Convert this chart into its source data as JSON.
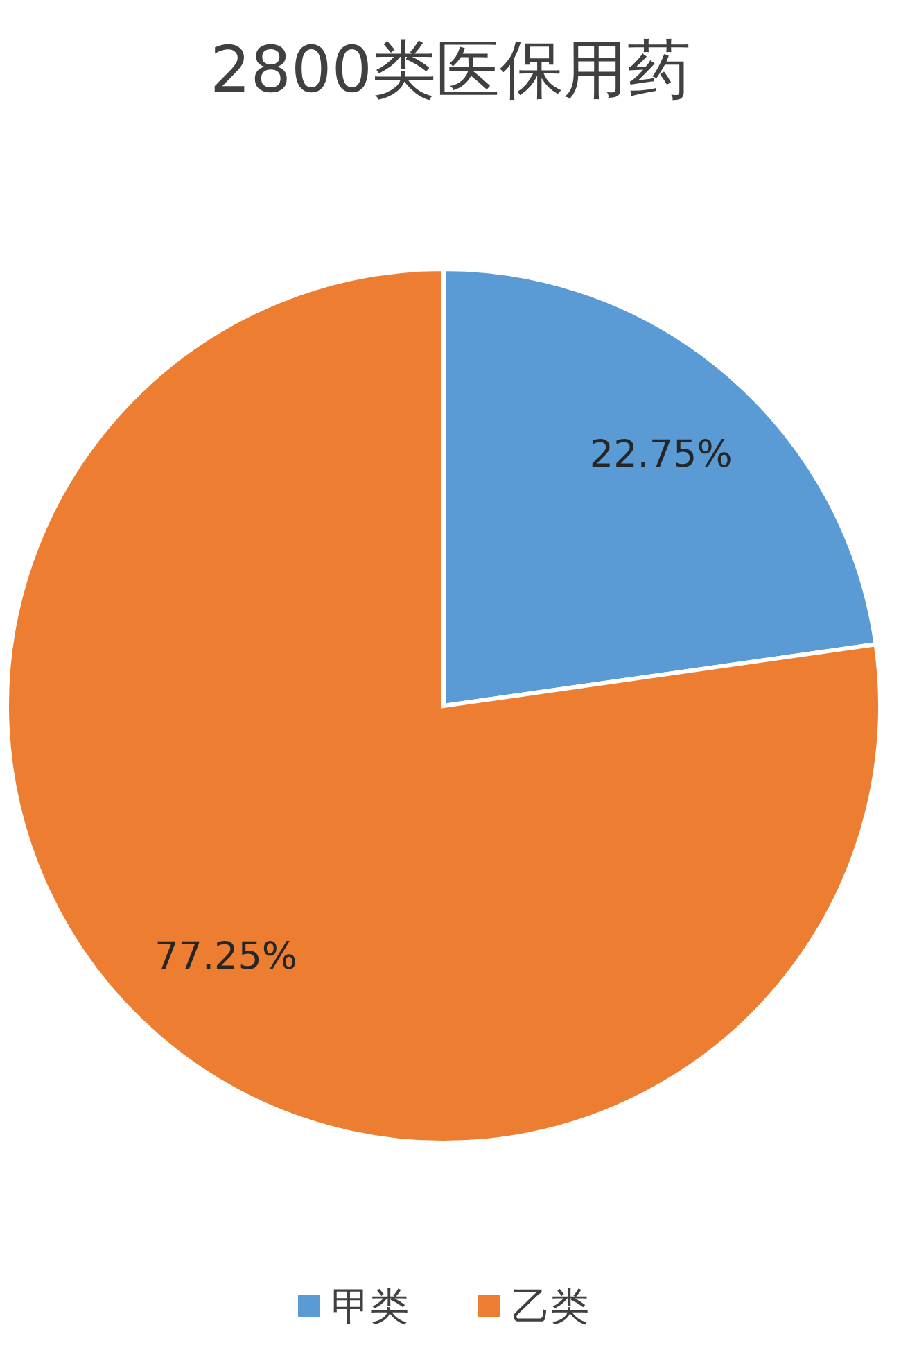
{
  "chart_data": {
    "type": "pie",
    "title": "2800类医保用药",
    "categories": [
      "甲类",
      "乙类"
    ],
    "values": [
      22.75,
      77.25
    ],
    "colors": [
      "#5b9bd5",
      "#ed7d31"
    ],
    "value_labels": [
      "22.75%",
      "77.25%"
    ],
    "legend": "bottom"
  }
}
